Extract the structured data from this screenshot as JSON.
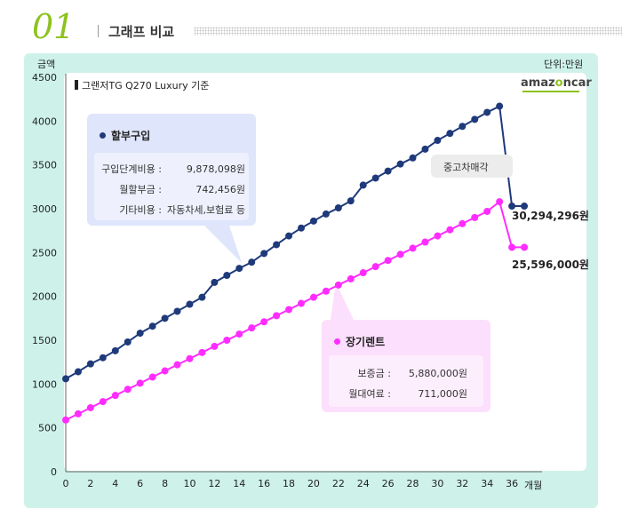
{
  "header": {
    "number": "01",
    "title": "그래프 비교"
  },
  "chart_data": {
    "type": "line",
    "ylabel": "금액",
    "xlabel": "개월",
    "unit_label": "단위:만원",
    "subtitle": "그랜저TG Q270 Luxury 기준",
    "xlim": [
      0,
      38
    ],
    "ylim": [
      0,
      4500
    ],
    "x_ticks": [
      0,
      2,
      4,
      6,
      8,
      10,
      12,
      14,
      16,
      18,
      20,
      22,
      24,
      26,
      28,
      30,
      32,
      34,
      36
    ],
    "y_ticks": [
      0,
      500,
      1000,
      1500,
      2000,
      2500,
      3000,
      3500,
      4000,
      4500
    ],
    "series": [
      {
        "name": "할부구입",
        "color": "#1f3a7a",
        "x": [
          0,
          1,
          2,
          3,
          4,
          5,
          6,
          7,
          8,
          9,
          10,
          11,
          12,
          13,
          14,
          15,
          16,
          17,
          18,
          19,
          20,
          21,
          22,
          23,
          24,
          25,
          26,
          27,
          28,
          29,
          30,
          31,
          32,
          33,
          34,
          35,
          36,
          37
        ],
        "values": [
          1060,
          1140,
          1230,
          1300,
          1380,
          1480,
          1580,
          1660,
          1750,
          1830,
          1910,
          1990,
          2160,
          2240,
          2320,
          2390,
          2490,
          2590,
          2690,
          2780,
          2860,
          2940,
          3010,
          3090,
          3270,
          3350,
          3430,
          3510,
          3580,
          3680,
          3780,
          3860,
          3940,
          4020,
          4100,
          4170,
          3030,
          3030
        ]
      },
      {
        "name": "장기렌트",
        "color": "#ff2cff",
        "x": [
          0,
          1,
          2,
          3,
          4,
          5,
          6,
          7,
          8,
          9,
          10,
          11,
          12,
          13,
          14,
          15,
          16,
          17,
          18,
          19,
          20,
          21,
          22,
          23,
          24,
          25,
          26,
          27,
          28,
          29,
          30,
          31,
          32,
          33,
          34,
          35,
          36,
          37
        ],
        "values": [
          590,
          660,
          730,
          800,
          870,
          940,
          1010,
          1080,
          1150,
          1220,
          1290,
          1360,
          1430,
          1500,
          1570,
          1640,
          1710,
          1780,
          1850,
          1920,
          1990,
          2060,
          2130,
          2200,
          2270,
          2340,
          2410,
          2480,
          2550,
          2620,
          2690,
          2760,
          2830,
          2900,
          2970,
          3080,
          2560,
          2560
        ]
      }
    ],
    "annotations": {
      "used_car_sale": "중고차매각",
      "installment_total": "30,294,296원",
      "rental_total": "25,596,000원"
    }
  },
  "logo": {
    "text1": "amaz",
    "text2": "o",
    "text3": "ncar"
  },
  "installment_box": {
    "title": "할부구입",
    "rows": [
      {
        "label": "구입단계비용 :",
        "value": "9,878,098원"
      },
      {
        "label": "월할부금 :",
        "value": "742,456원"
      },
      {
        "label": "기타비용 :",
        "value": "자동차세,보험료 등"
      }
    ]
  },
  "rental_box": {
    "title": "장기렌트",
    "rows": [
      {
        "label": "보증금 :",
        "value": "5,880,000원"
      },
      {
        "label": "월대여료 :",
        "value": "711,000원"
      }
    ]
  }
}
